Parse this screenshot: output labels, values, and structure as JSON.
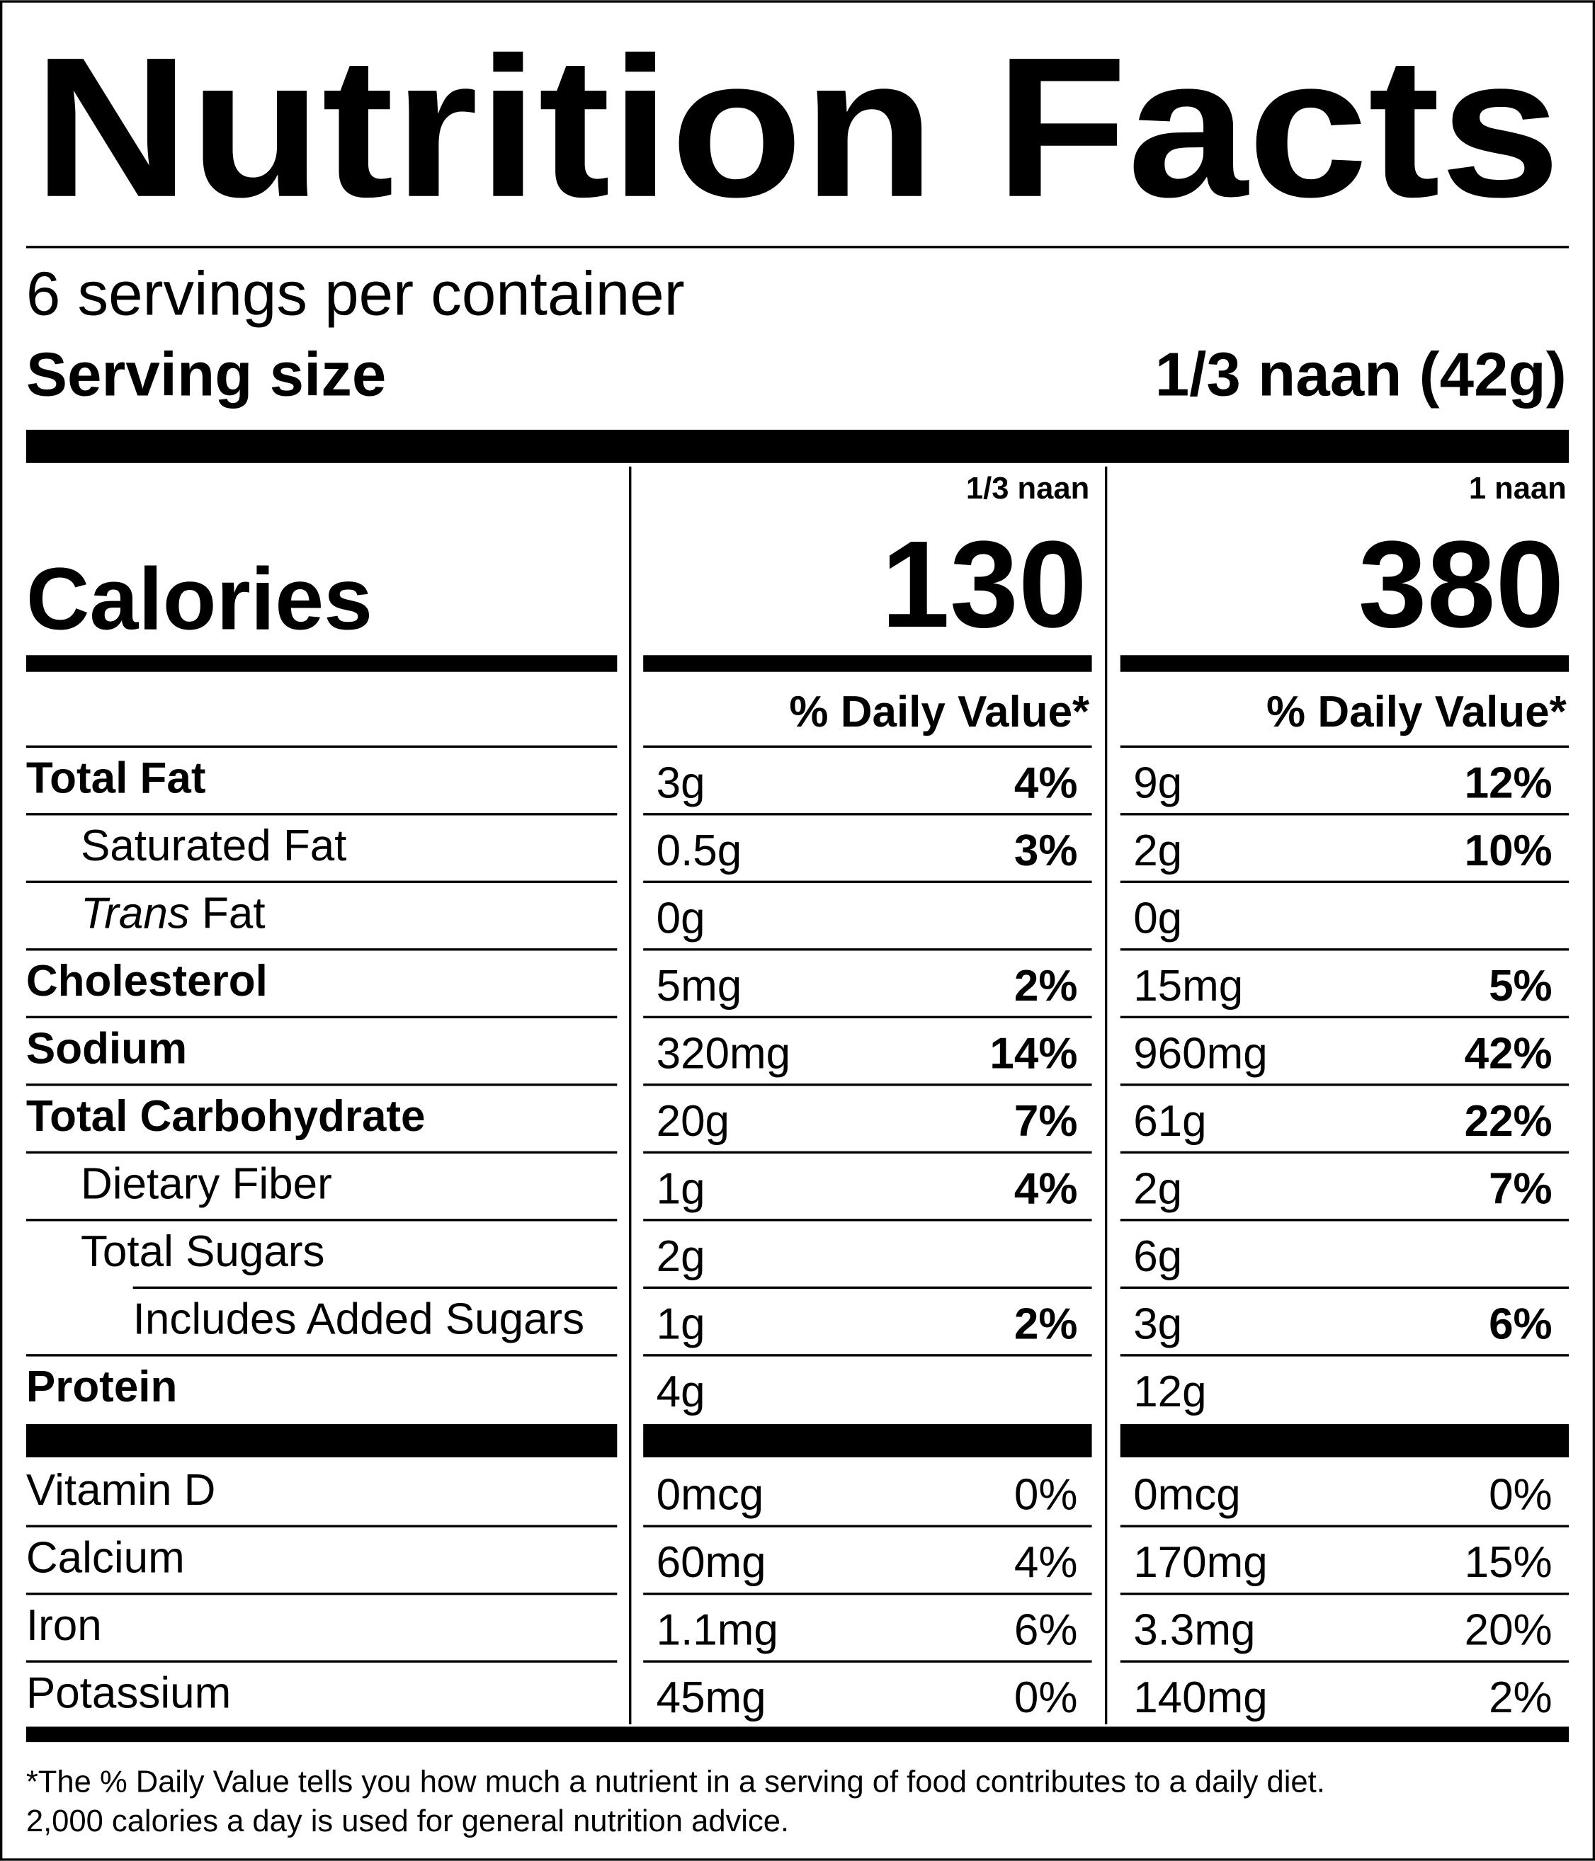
{
  "title": "Nutrition Facts",
  "servings_per_container": "6 servings per container",
  "serving_size_label": "Serving size",
  "serving_size": "1/3 naan (42g)",
  "calories_label": "Calories",
  "columns": [
    {
      "header": "1/3 naan",
      "calories": "130",
      "dv_header": "% Daily Value*"
    },
    {
      "header": "1 naan",
      "calories": "380",
      "dv_header": "% Daily Value*"
    }
  ],
  "nutrients": [
    {
      "name": "Total Fat",
      "bold": true,
      "indent": 0,
      "values": [
        {
          "amount": "3g",
          "dv": "4%"
        },
        {
          "amount": "9g",
          "dv": "12%"
        }
      ]
    },
    {
      "name": "Saturated Fat",
      "bold": false,
      "indent": 1,
      "values": [
        {
          "amount": "0.5g",
          "dv": "3%"
        },
        {
          "amount": "2g",
          "dv": "10%"
        }
      ]
    },
    {
      "name_italic": "Trans",
      "name": " Fat",
      "bold": false,
      "indent": 1,
      "values": [
        {
          "amount": "0g"
        },
        {
          "amount": "0g"
        }
      ]
    },
    {
      "name": "Cholesterol",
      "bold": true,
      "indent": 0,
      "values": [
        {
          "amount": "5mg",
          "dv": "2%"
        },
        {
          "amount": "15mg",
          "dv": "5%"
        }
      ]
    },
    {
      "name": "Sodium",
      "bold": true,
      "indent": 0,
      "values": [
        {
          "amount": "320mg",
          "dv": "14%"
        },
        {
          "amount": "960mg",
          "dv": "42%"
        }
      ]
    },
    {
      "name": "Total Carbohydrate",
      "bold": true,
      "indent": 0,
      "values": [
        {
          "amount": "20g",
          "dv": "7%"
        },
        {
          "amount": "61g",
          "dv": "22%"
        }
      ]
    },
    {
      "name": "Dietary Fiber",
      "bold": false,
      "indent": 1,
      "values": [
        {
          "amount": "1g",
          "dv": "4%"
        },
        {
          "amount": "2g",
          "dv": "7%"
        }
      ]
    },
    {
      "name": "Total Sugars",
      "bold": false,
      "indent": 1,
      "values": [
        {
          "amount": "2g"
        },
        {
          "amount": "6g"
        }
      ]
    },
    {
      "name": "Includes Added Sugars",
      "bold": false,
      "indent": 2,
      "values": [
        {
          "amount": "1g",
          "dv": "2%"
        },
        {
          "amount": "3g",
          "dv": "6%"
        }
      ]
    },
    {
      "name": "Protein",
      "bold": true,
      "indent": 0,
      "values": [
        {
          "amount": "4g"
        },
        {
          "amount": "12g"
        }
      ]
    }
  ],
  "vitamins_minerals": [
    {
      "name": "Vitamin D",
      "values": [
        {
          "amount": "0mcg",
          "dv": "0%"
        },
        {
          "amount": "0mcg",
          "dv": "0%"
        }
      ]
    },
    {
      "name": "Calcium",
      "values": [
        {
          "amount": "60mg",
          "dv": "4%"
        },
        {
          "amount": "170mg",
          "dv": "15%"
        }
      ]
    },
    {
      "name": "Iron",
      "values": [
        {
          "amount": "1.1mg",
          "dv": "6%"
        },
        {
          "amount": "3.3mg",
          "dv": "20%"
        }
      ]
    },
    {
      "name": "Potassium",
      "values": [
        {
          "amount": "45mg",
          "dv": "0%"
        },
        {
          "amount": "140mg",
          "dv": "2%"
        }
      ]
    }
  ],
  "footnote": [
    "*The % Daily Value tells you how much a nutrient in a serving of food contributes to a daily diet.",
    "2,000 calories a day is used for general nutrition advice."
  ]
}
